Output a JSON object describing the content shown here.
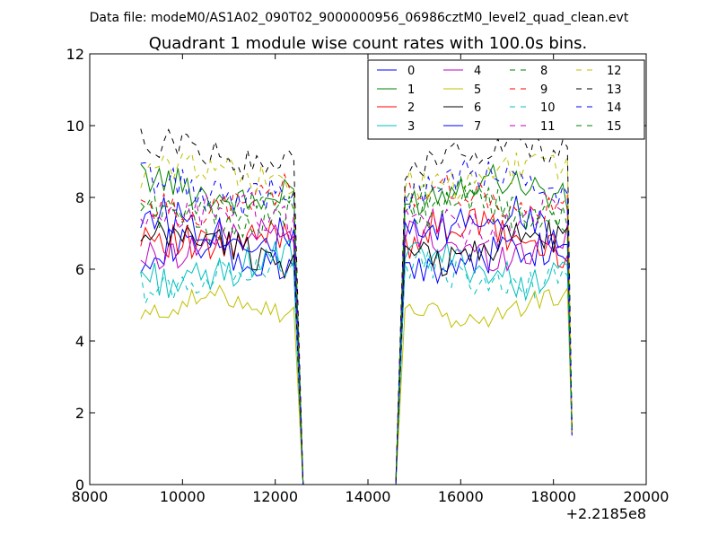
{
  "chart_data": {
    "type": "line",
    "suptitle": "Data file: modeM0/AS1A02_090T02_9000000956_06986cztM0_level2_quad_clean.evt",
    "title": "Quadrant 1 module wise count rates with 100.0s bins.",
    "xlabel": "",
    "ylabel": "",
    "x_offset_label": "+2.2185e8",
    "xlim": [
      8000,
      20000
    ],
    "ylim": [
      0,
      12
    ],
    "xticks": [
      8000,
      10000,
      12000,
      14000,
      16000,
      18000,
      20000
    ],
    "yticks": [
      0,
      2,
      4,
      6,
      8,
      10,
      12
    ],
    "xtick_labels": [
      "8000",
      "10000",
      "12000",
      "14000",
      "16000",
      "18000",
      "20000"
    ],
    "ytick_labels": [
      "0",
      "2",
      "4",
      "6",
      "8",
      "10",
      "12"
    ],
    "grid": false,
    "legend_position": "top-right",
    "legend_columns": 4,
    "segments": [
      {
        "x_start": 9100,
        "x_end": 12400,
        "step": 100
      },
      {
        "x_start": 14800,
        "x_end": 18400,
        "step": 100
      }
    ],
    "gap": {
      "x_start": 12600,
      "x_end": 14600,
      "value": 0
    },
    "end_values": {
      "segment1_end": 0,
      "segment2_end": 1.5
    },
    "series": [
      {
        "name": "0",
        "color": "#0000ff",
        "dash": "solid",
        "level": 6.3,
        "amplitude": 0.55
      },
      {
        "name": "1",
        "color": "#008000",
        "dash": "solid",
        "level": 8.2,
        "amplitude": 0.45
      },
      {
        "name": "2",
        "color": "#ff0000",
        "dash": "solid",
        "level": 6.9,
        "amplitude": 0.55
      },
      {
        "name": "3",
        "color": "#00bfbf",
        "dash": "solid",
        "level": 6.0,
        "amplitude": 0.5
      },
      {
        "name": "4",
        "color": "#bf00bf",
        "dash": "solid",
        "level": 6.7,
        "amplitude": 0.45
      },
      {
        "name": "5",
        "color": "#bfbf00",
        "dash": "solid",
        "level": 4.9,
        "amplitude": 0.3
      },
      {
        "name": "6",
        "color": "#000000",
        "dash": "solid",
        "level": 6.6,
        "amplitude": 0.5
      },
      {
        "name": "7",
        "color": "#0000ff",
        "dash": "solid",
        "level": 7.2,
        "amplitude": 0.55
      },
      {
        "name": "8",
        "color": "#008000",
        "dash": "dashed",
        "level": 7.5,
        "amplitude": 0.5
      },
      {
        "name": "9",
        "color": "#ff0000",
        "dash": "dashed",
        "level": 7.9,
        "amplitude": 0.45
      },
      {
        "name": "10",
        "color": "#00bfbf",
        "dash": "dashed",
        "level": 5.8,
        "amplitude": 0.45
      },
      {
        "name": "11",
        "color": "#bf00bf",
        "dash": "dashed",
        "level": 7.4,
        "amplitude": 0.5
      },
      {
        "name": "12",
        "color": "#bfbf00",
        "dash": "dashed",
        "level": 8.6,
        "amplitude": 0.45
      },
      {
        "name": "13",
        "color": "#000000",
        "dash": "dashed",
        "level": 9.2,
        "amplitude": 0.45
      },
      {
        "name": "14",
        "color": "#0000ff",
        "dash": "dashed",
        "level": 8.3,
        "amplitude": 0.5
      },
      {
        "name": "15",
        "color": "#008000",
        "dash": "dashed",
        "level": 7.8,
        "amplitude": 0.45
      }
    ]
  }
}
